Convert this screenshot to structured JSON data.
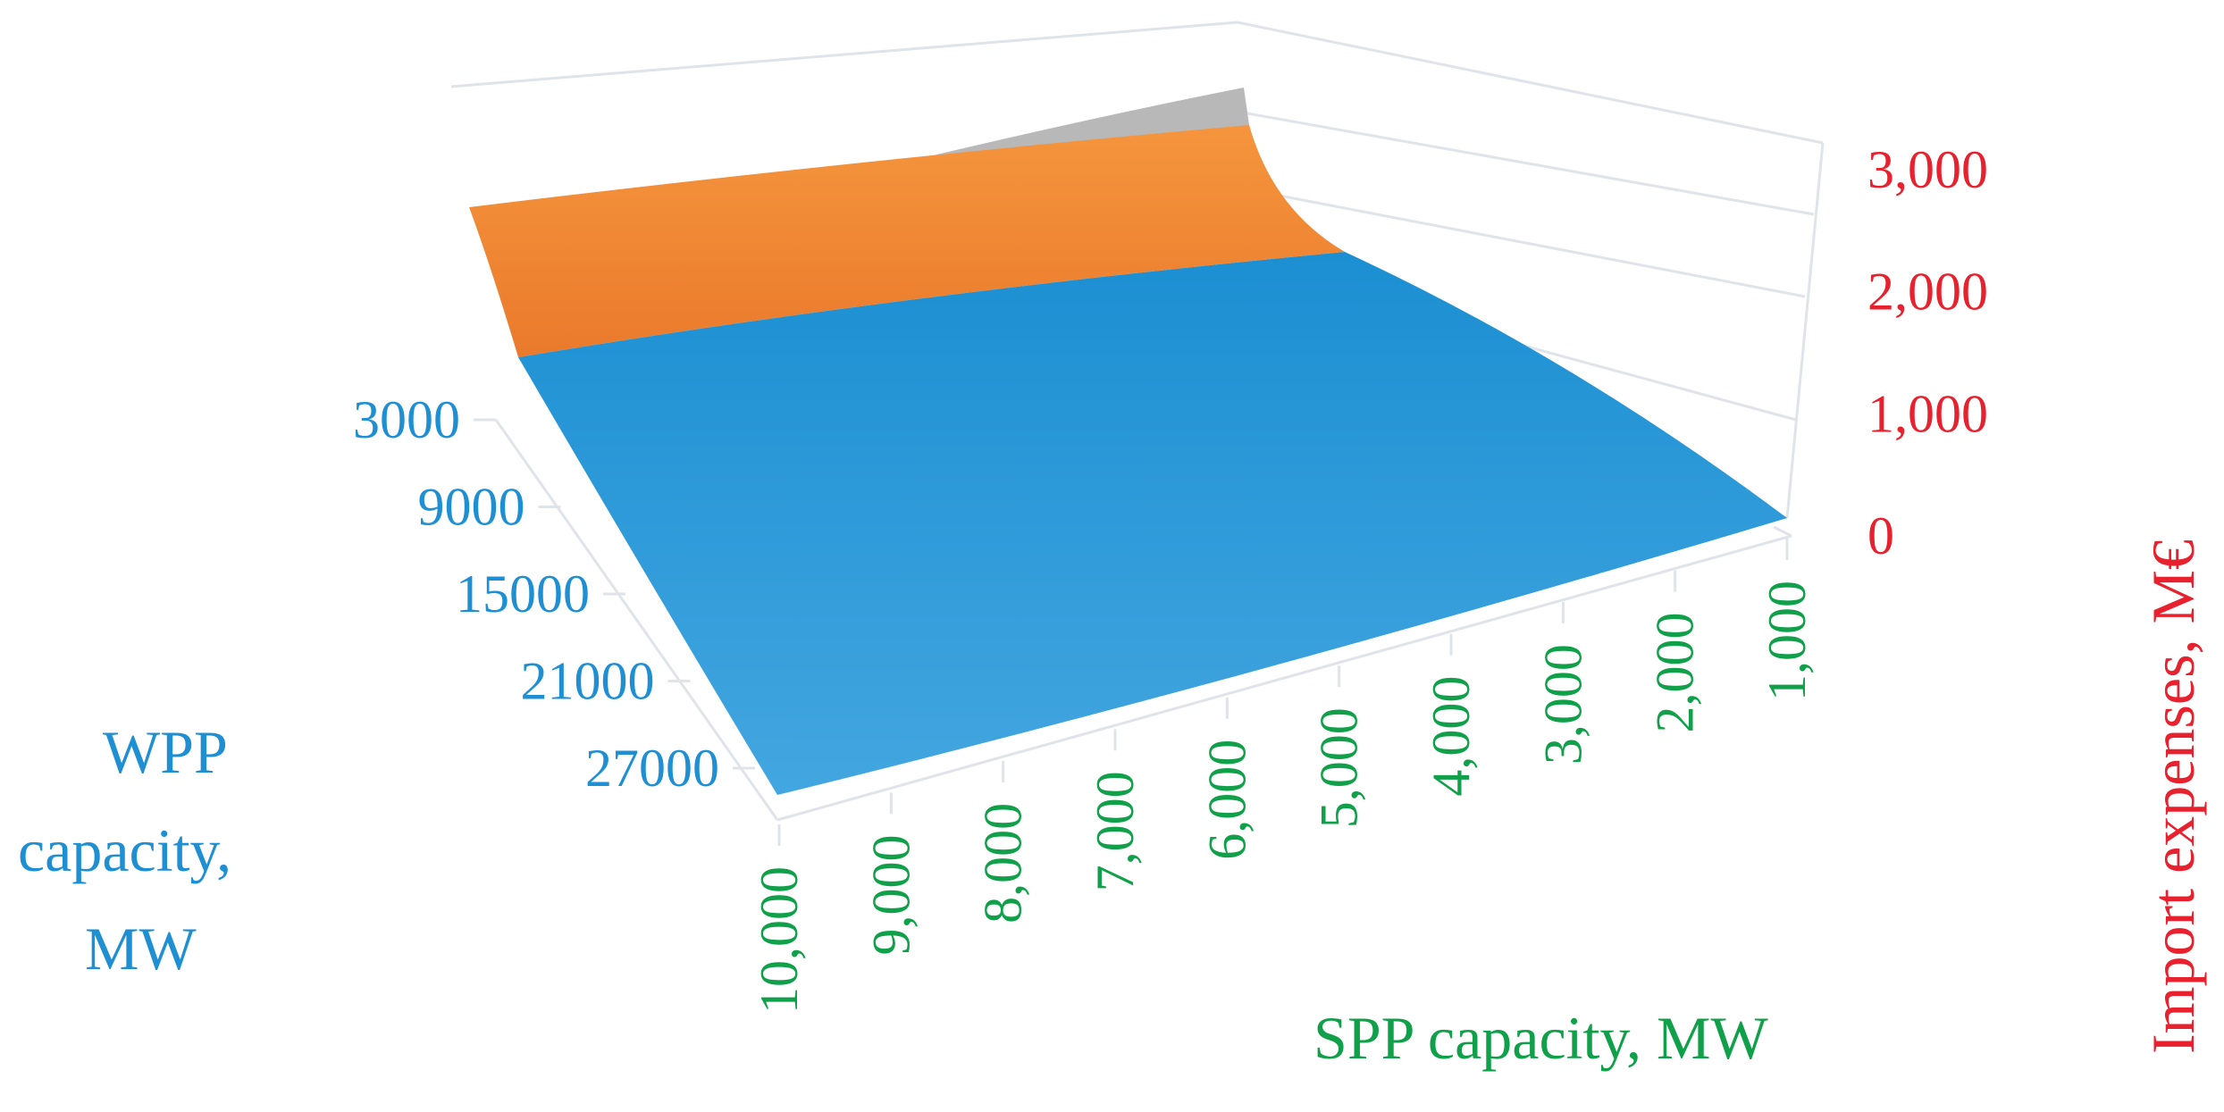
{
  "chart_data": {
    "type": "surface3d",
    "title": "",
    "z_axis": {
      "label": "Import expenses, M€",
      "ticks": [
        "0",
        "1,000",
        "2,000",
        "3,000"
      ],
      "tick_values": [
        0,
        1000,
        2000,
        3000
      ],
      "range": [
        0,
        3000
      ],
      "color": "#e8212e"
    },
    "y_axis": {
      "label_lines": [
        "WPP",
        "capacity,",
        "MW"
      ],
      "ticks": [
        "3000",
        "9000",
        "15000",
        "21000",
        "27000"
      ],
      "tick_values": [
        3000,
        9000,
        15000,
        21000,
        27000
      ],
      "color": "#1f8fd3"
    },
    "x_axis": {
      "label": "SPP capacity, MW",
      "ticks": [
        "10,000",
        "9,000",
        "8,000",
        "7,000",
        "6,000",
        "5,000",
        "4,000",
        "3,000",
        "2,000",
        "1,000"
      ],
      "tick_values": [
        10000,
        9000,
        8000,
        7000,
        6000,
        5000,
        4000,
        3000,
        2000,
        1000
      ],
      "color": "#11a04a"
    },
    "surface_bands": [
      {
        "range": [
          0,
          1000
        ],
        "color": "#1f96d6"
      },
      {
        "range": [
          1000,
          2000
        ],
        "color": "#f08a35"
      },
      {
        "range": [
          2000,
          3000
        ],
        "color": "#b4b4b4"
      }
    ],
    "grid": true,
    "legend": "none"
  }
}
